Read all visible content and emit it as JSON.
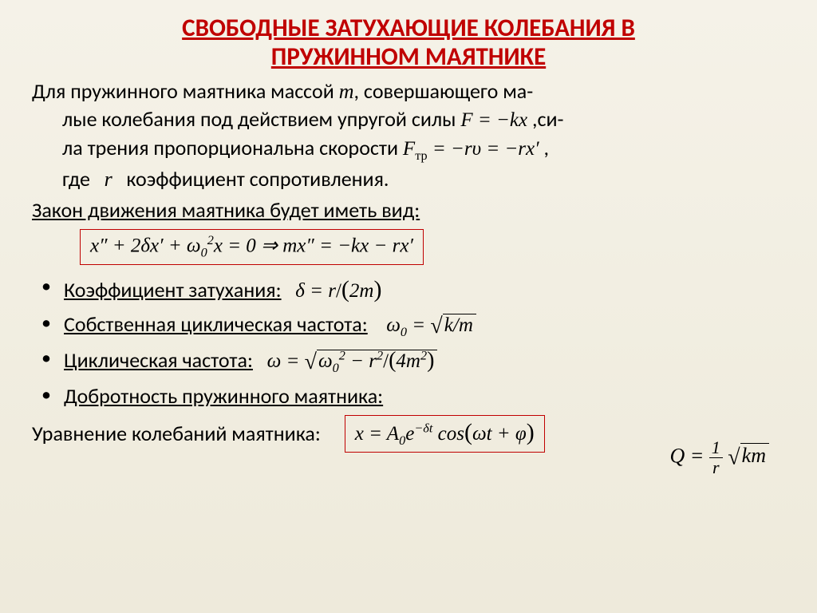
{
  "title_line1": "СВОБОДНЫЕ ЗАТУХАЮЩИЕ КОЛЕБАНИЯ В",
  "title_line2": "ПРУЖИННОМ МАЯТНИКЕ",
  "intro": {
    "l1a": "Для пружинного маятника массой ",
    "m": "m",
    "l1b": ", совершающего ма-",
    "l2a": "лые колебания под действием упругой силы ",
    "eqF": "F = −kx",
    "l2b": " ,си-",
    "l3a": "ла трения пропорциональна скорости ",
    "eqFtr": "F",
    "eqFtr_sub": "тр",
    "eqFtr_rest": " = −rυ = −rx′",
    "l3b": " ,",
    "l4a": "где ",
    "r": "r",
    "l4b": " коэффициент сопротивления."
  },
  "law_label": "Закон движения маятника будет иметь вид:",
  "boxed_eq": "x″ + 2δx′ + ω",
  "boxed_eq_sub": "0",
  "boxed_eq_sup": "2",
  "boxed_eq2": "x = 0 ⇒    mx″ = −kx − rx′",
  "bullets": {
    "b1": "Коэффициент затухания:",
    "b1_eq_a": "δ = r",
    "b1_eq_b": "2m",
    "b2": "Собственная циклическая  частота:",
    "b2_eq_a": "ω",
    "b2_eq_b": "k/m",
    "b3": "Циклическая частота:",
    "b3_eq_a": "ω = ",
    "b3_eq_b": "ω",
    "b3_eq_c": " − r",
    "b3_eq_d": "4m",
    "b4": "Добротность пружинного маятника:"
  },
  "Q_eq": {
    "a": "Q = ",
    "num": "1",
    "den": "r",
    "sqrt": "km"
  },
  "final_label": "Уравнение колебаний маятника:",
  "final_eq_a": "x = A",
  "final_eq_b": "e",
  "final_eq_exp": "−δt",
  "final_eq_c": " cos",
  "final_eq_d": "ωt + φ",
  "colors": {
    "title": "#c00000",
    "box_border": "#c00000",
    "bg_top": "#f5f2e8",
    "bg_bottom": "#eeeadb"
  },
  "fontsize": {
    "title": 31,
    "body": 26,
    "math": 25
  }
}
